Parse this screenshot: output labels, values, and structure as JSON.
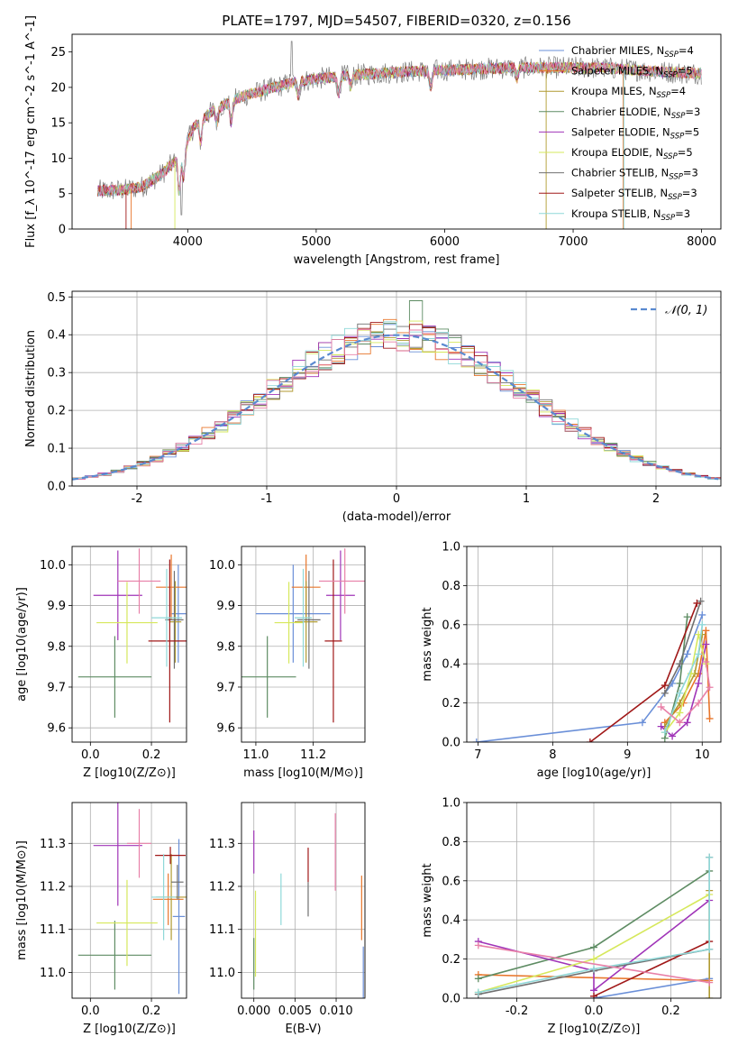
{
  "figure_title": "PLATE=1797, MJD=54507, FIBERID=0320, z=0.156",
  "colors": {
    "c1": "#6a8fd8",
    "c2": "#e8762b",
    "c3": "#b09a30",
    "c4": "#5e8c63",
    "c5": "#a034b8",
    "c6": "#d6e85c",
    "c7": "#707070",
    "c8": "#a01818",
    "c9": "#8fd8d8",
    "c10": "#e880a8"
  },
  "legend_spectrum": [
    {
      "text": "Chabrier MILES, N",
      "sub": "SSP",
      "rest": "=4",
      "color": "c1"
    },
    {
      "text": "Salpeter MILES, N",
      "sub": "SSP",
      "rest": "=5",
      "color": "c2"
    },
    {
      "text": "Kroupa MILES, N",
      "sub": "SSP",
      "rest": "=4",
      "color": "c3"
    },
    {
      "text": "Chabrier ELODIE, N",
      "sub": "SSP",
      "rest": "=3",
      "color": "c4"
    },
    {
      "text": "Salpeter ELODIE, N",
      "sub": "SSP",
      "rest": "=5",
      "color": "c5"
    },
    {
      "text": "Kroupa ELODIE, N",
      "sub": "SSP",
      "rest": "=5",
      "color": "c6"
    },
    {
      "text": "Chabrier STELIB, N",
      "sub": "SSP",
      "rest": "=3",
      "color": "c7"
    },
    {
      "text": "Salpeter STELIB, N",
      "sub": "SSP",
      "rest": "=3",
      "color": "c8"
    },
    {
      "text": "Kroupa STELIB, N",
      "sub": "SSP",
      "rest": "=3",
      "color": "c9"
    }
  ],
  "legend_hist": "𝒩(0, 1)",
  "chart_data": [
    {
      "id": "spectrum",
      "type": "line",
      "xlabel": "wavelength [Angstrom, rest frame]",
      "ylabel": "Flux [f_λ 10^-17 erg cm^-2 s^-1 A^-1]",
      "xlim": [
        3100,
        8150
      ],
      "ylim": [
        0,
        27.5
      ],
      "xticks": [
        4000,
        5000,
        6000,
        7000,
        8000
      ],
      "yticks": [
        0,
        5,
        10,
        15,
        20,
        25
      ],
      "continuum": [
        [
          3300,
          5.4
        ],
        [
          3500,
          5.5
        ],
        [
          3650,
          6.0
        ],
        [
          3800,
          7.8
        ],
        [
          3950,
          10.5
        ],
        [
          4050,
          14.5
        ],
        [
          4200,
          16.8
        ],
        [
          4400,
          18.6
        ],
        [
          4600,
          19.6
        ],
        [
          4800,
          20.6
        ],
        [
          5000,
          21.2
        ],
        [
          5200,
          21.6
        ],
        [
          5500,
          22.0
        ],
        [
          5800,
          22.3
        ],
        [
          6100,
          22.5
        ],
        [
          6400,
          22.7
        ],
        [
          6700,
          22.8
        ],
        [
          7000,
          22.8
        ],
        [
          7300,
          22.7
        ],
        [
          7600,
          22.3
        ],
        [
          7900,
          22.0
        ],
        [
          8000,
          22.0
        ]
      ],
      "grid": false
    },
    {
      "id": "residual_hist",
      "type": "line",
      "xlabel": "(data-model)/error",
      "ylabel": "Normed distribution",
      "xlim": [
        -2.5,
        2.5
      ],
      "ylim": [
        0,
        0.515
      ],
      "xticks": [
        -2,
        -1,
        0,
        1,
        2
      ],
      "yticks": [
        0.0,
        0.1,
        0.2,
        0.3,
        0.4,
        0.5
      ],
      "gaussian": {
        "mu": 0,
        "sigma": 1
      },
      "grid": true
    },
    {
      "id": "age_vs_Z",
      "type": "scatter",
      "xlabel": "Z [log10(Z/Z⊙)]",
      "ylabel": "age  [log10(age/yr)]",
      "xlim": [
        -0.06,
        0.315
      ],
      "ylim": [
        9.565,
        10.045
      ],
      "xticks": [
        0.0,
        0.2
      ],
      "yticks": [
        9.6,
        9.7,
        9.8,
        9.9,
        10.0
      ],
      "grid": true,
      "points": [
        {
          "color": "c1",
          "x": 0.288,
          "y": 9.88,
          "xerr": 0.025,
          "yerr": 0.12
        },
        {
          "color": "c2",
          "x": 0.265,
          "y": 9.945,
          "xerr": 0.05,
          "yerr": 0.08
        },
        {
          "color": "c3",
          "x": 0.278,
          "y": 9.86,
          "xerr": 0.02,
          "yerr": 0.1
        },
        {
          "color": "c4",
          "x": 0.08,
          "y": 9.725,
          "xerr": 0.12,
          "yerr": 0.1
        },
        {
          "color": "c5",
          "x": 0.09,
          "y": 9.925,
          "xerr": 0.08,
          "yerr": 0.11
        },
        {
          "color": "c6",
          "x": 0.12,
          "y": 9.858,
          "xerr": 0.1,
          "yerr": 0.1
        },
        {
          "color": "c7",
          "x": 0.275,
          "y": 9.865,
          "xerr": 0.03,
          "yerr": 0.12
        },
        {
          "color": "c8",
          "x": 0.26,
          "y": 9.813,
          "xerr": 0.07,
          "yerr": 0.2
        },
        {
          "color": "c9",
          "x": 0.25,
          "y": 9.87,
          "xerr": 0.05,
          "yerr": 0.12
        },
        {
          "color": "c10",
          "x": 0.16,
          "y": 9.96,
          "xerr": 0.07,
          "yerr": 0.08
        }
      ]
    },
    {
      "id": "age_vs_mass",
      "type": "scatter",
      "xlabel": "mass [log10(M/M⊙)]",
      "ylabel": "",
      "xlim": [
        10.95,
        11.38
      ],
      "ylim": [
        9.565,
        10.045
      ],
      "xticks": [
        11.0,
        11.2
      ],
      "yticks": [
        9.6,
        9.7,
        9.8,
        9.9,
        10.0
      ],
      "grid": true,
      "points": [
        {
          "color": "c1",
          "x": 11.13,
          "y": 9.88,
          "xerr": 0.13,
          "yerr": 0.12
        },
        {
          "color": "c2",
          "x": 11.175,
          "y": 9.945,
          "xerr": 0.05,
          "yerr": 0.08
        },
        {
          "color": "c3",
          "x": 11.175,
          "y": 9.86,
          "xerr": 0.04,
          "yerr": 0.1
        },
        {
          "color": "c4",
          "x": 11.04,
          "y": 9.725,
          "xerr": 0.1,
          "yerr": 0.1
        },
        {
          "color": "c5",
          "x": 11.295,
          "y": 9.925,
          "xerr": 0.05,
          "yerr": 0.11
        },
        {
          "color": "c6",
          "x": 11.115,
          "y": 9.858,
          "xerr": 0.05,
          "yerr": 0.1
        },
        {
          "color": "c7",
          "x": 11.185,
          "y": 9.865,
          "xerr": 0.04,
          "yerr": 0.12
        },
        {
          "color": "c8",
          "x": 11.27,
          "y": 9.813,
          "xerr": 0.03,
          "yerr": 0.2
        },
        {
          "color": "c9",
          "x": 11.165,
          "y": 9.87,
          "xerr": 0.03,
          "yerr": 0.12
        },
        {
          "color": "c10",
          "x": 11.31,
          "y": 9.96,
          "xerr": 0.09,
          "yerr": 0.08
        }
      ]
    },
    {
      "id": "weight_vs_age",
      "type": "line",
      "xlabel": "age  [log10(age/yr)]",
      "ylabel": "mass weight",
      "xlim": [
        6.85,
        10.25
      ],
      "ylim": [
        0,
        1.0
      ],
      "xticks": [
        7,
        8,
        9,
        10
      ],
      "yticks": [
        0.0,
        0.2,
        0.4,
        0.6,
        0.8,
        1.0
      ],
      "grid": true,
      "series": [
        {
          "color": "c1",
          "points": [
            [
              6.98,
              0.0
            ],
            [
              9.2,
              0.1
            ],
            [
              9.6,
              0.3
            ],
            [
              9.8,
              0.45
            ],
            [
              10.0,
              0.65
            ]
          ]
        },
        {
          "color": "c2",
          "points": [
            [
              9.5,
              0.1
            ],
            [
              9.75,
              0.2
            ],
            [
              9.95,
              0.35
            ],
            [
              10.05,
              0.57
            ],
            [
              10.1,
              0.12
            ]
          ]
        },
        {
          "color": "c3",
          "points": [
            [
              9.5,
              0.08
            ],
            [
              9.7,
              0.2
            ],
            [
              9.9,
              0.35
            ],
            [
              10.0,
              0.55
            ]
          ]
        },
        {
          "color": "c4",
          "points": [
            [
              9.5,
              0.02
            ],
            [
              9.7,
              0.3
            ],
            [
              9.8,
              0.64
            ]
          ]
        },
        {
          "color": "c5",
          "points": [
            [
              9.45,
              0.08
            ],
            [
              9.6,
              0.03
            ],
            [
              9.8,
              0.1
            ],
            [
              9.95,
              0.3
            ],
            [
              10.05,
              0.5
            ]
          ]
        },
        {
          "color": "c6",
          "points": [
            [
              9.5,
              0.05
            ],
            [
              9.7,
              0.15
            ],
            [
              9.85,
              0.35
            ],
            [
              9.95,
              0.55
            ],
            [
              10.05,
              0.4
            ]
          ]
        },
        {
          "color": "c7",
          "points": [
            [
              9.5,
              0.25
            ],
            [
              9.7,
              0.4
            ],
            [
              9.98,
              0.72
            ]
          ]
        },
        {
          "color": "c8",
          "points": [
            [
              8.5,
              0.0
            ],
            [
              9.5,
              0.29
            ],
            [
              9.93,
              0.71
            ]
          ]
        },
        {
          "color": "c9",
          "points": [
            [
              9.5,
              0.05
            ],
            [
              9.7,
              0.25
            ],
            [
              9.95,
              0.45
            ],
            [
              10.0,
              0.6
            ]
          ]
        },
        {
          "color": "c10",
          "points": [
            [
              9.45,
              0.18
            ],
            [
              9.7,
              0.1
            ],
            [
              9.95,
              0.2
            ],
            [
              10.1,
              0.28
            ],
            [
              10.05,
              0.41
            ]
          ]
        }
      ]
    },
    {
      "id": "mass_vs_Z",
      "type": "scatter",
      "xlabel": "Z [log10(Z/Z⊙)]",
      "ylabel": "mass [log10(M/M⊙)]",
      "xlim": [
        -0.06,
        0.315
      ],
      "ylim": [
        10.94,
        11.395
      ],
      "xticks": [
        0.0,
        0.2
      ],
      "yticks": [
        11.0,
        11.1,
        11.2,
        11.3
      ],
      "grid": true,
      "points": [
        {
          "color": "c1",
          "x": 0.29,
          "y": 11.13,
          "xerr": 0.02,
          "yerr": 0.18
        },
        {
          "color": "c2",
          "x": 0.255,
          "y": 11.17,
          "xerr": 0.05,
          "yerr": 0.06
        },
        {
          "color": "c3",
          "x": 0.265,
          "y": 11.175,
          "xerr": 0.05,
          "yerr": 0.1
        },
        {
          "color": "c4",
          "x": 0.08,
          "y": 11.04,
          "xerr": 0.12,
          "yerr": 0.08
        },
        {
          "color": "c5",
          "x": 0.09,
          "y": 11.295,
          "xerr": 0.08,
          "yerr": 0.14
        },
        {
          "color": "c6",
          "x": 0.12,
          "y": 11.115,
          "xerr": 0.1,
          "yerr": 0.1
        },
        {
          "color": "c7",
          "x": 0.285,
          "y": 11.21,
          "xerr": 0.02,
          "yerr": 0.04
        },
        {
          "color": "c8",
          "x": 0.262,
          "y": 11.272,
          "xerr": 0.05,
          "yerr": 0.02
        },
        {
          "color": "c9",
          "x": 0.24,
          "y": 11.175,
          "xerr": 0.04,
          "yerr": 0.1
        },
        {
          "color": "c10",
          "x": 0.16,
          "y": 11.3,
          "xerr": 0.04,
          "yerr": 0.08
        }
      ]
    },
    {
      "id": "mass_vs_ebv",
      "type": "scatter",
      "xlabel": "E(B-V)",
      "ylabel": "",
      "xlim": [
        -0.0015,
        0.0135
      ],
      "ylim": [
        10.94,
        11.395
      ],
      "xticks": [
        0.0,
        0.005,
        0.01
      ],
      "yticks": [
        11.0,
        11.1,
        11.2,
        11.3
      ],
      "grid": true,
      "points": [
        {
          "color": "c1",
          "x": 0.0133,
          "y": 11.0,
          "xerr": 0,
          "yerr": 0.06
        },
        {
          "color": "c2",
          "x": 0.0131,
          "y": 11.15,
          "xerr": 0,
          "yerr": 0.075
        },
        {
          "color": "c4",
          "x": 0.0,
          "y": 11.02,
          "xerr": 0,
          "yerr": 0.06
        },
        {
          "color": "c5",
          "x": 0.0,
          "y": 11.28,
          "xerr": 0,
          "yerr": 0.05
        },
        {
          "color": "c6",
          "x": 0.0002,
          "y": 11.09,
          "xerr": 0,
          "yerr": 0.1
        },
        {
          "color": "c7",
          "x": 0.0066,
          "y": 11.17,
          "xerr": 0,
          "yerr": 0.04
        },
        {
          "color": "c8",
          "x": 0.0066,
          "y": 11.25,
          "xerr": 0,
          "yerr": 0.04
        },
        {
          "color": "c9",
          "x": 0.0033,
          "y": 11.17,
          "xerr": 0,
          "yerr": 0.06
        },
        {
          "color": "c10",
          "x": 0.0099,
          "y": 11.28,
          "xerr": 0,
          "yerr": 0.09
        }
      ]
    },
    {
      "id": "weight_vs_Z",
      "type": "line",
      "xlabel": "Z [log10(Z/Z⊙)]",
      "ylabel": "mass weight",
      "xlim": [
        -0.33,
        0.33
      ],
      "ylim": [
        0,
        1.0
      ],
      "xticks": [
        -0.2,
        0.0,
        0.2
      ],
      "yticks": [
        0.0,
        0.2,
        0.4,
        0.6,
        0.8,
        1.0
      ],
      "grid": true,
      "series": [
        {
          "color": "c1",
          "points": [
            [
              0.0,
              0.0
            ],
            [
              0.3,
              0.1
            ]
          ]
        },
        {
          "color": "c2",
          "points": [
            [
              -0.3,
              0.12
            ],
            [
              0.3,
              0.09
            ]
          ]
        },
        {
          "color": "c3",
          "points": [
            [
              0.3,
              0.0
            ],
            [
              0.3,
              0.55
            ]
          ]
        },
        {
          "color": "c4",
          "points": [
            [
              -0.3,
              0.1
            ],
            [
              0.0,
              0.26
            ],
            [
              0.3,
              0.65
            ]
          ]
        },
        {
          "color": "c5",
          "points": [
            [
              -0.3,
              0.29
            ],
            [
              0.0,
              0.14
            ],
            [
              0.0,
              0.04
            ],
            [
              0.3,
              0.5
            ]
          ]
        },
        {
          "color": "c6",
          "points": [
            [
              -0.3,
              0.03
            ],
            [
              0.0,
              0.2
            ],
            [
              0.3,
              0.53
            ]
          ]
        },
        {
          "color": "c7",
          "points": [
            [
              -0.3,
              0.02
            ],
            [
              0.0,
              0.14
            ],
            [
              0.3,
              0.25
            ],
            [
              0.3,
              0.72
            ]
          ]
        },
        {
          "color": "c8",
          "points": [
            [
              0.0,
              0.01
            ],
            [
              0.3,
              0.29
            ]
          ]
        },
        {
          "color": "c9",
          "points": [
            [
              -0.3,
              0.03
            ],
            [
              0.0,
              0.15
            ],
            [
              0.3,
              0.25
            ],
            [
              0.3,
              0.72
            ]
          ]
        },
        {
          "color": "c10",
          "points": [
            [
              -0.3,
              0.27
            ],
            [
              0.3,
              0.08
            ]
          ]
        }
      ]
    }
  ]
}
